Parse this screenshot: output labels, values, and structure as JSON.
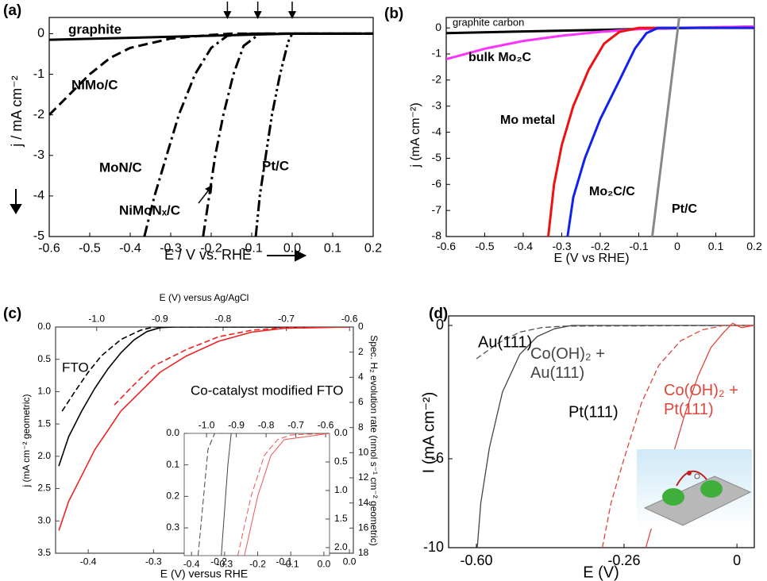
{
  "chart_data": [
    {
      "type": "line",
      "label": "(a)",
      "xlabel": "E / V vs. RHE",
      "ylabel": "j / mA cm⁻²",
      "xlim": [
        -0.6,
        0.2
      ],
      "xticks": [
        -0.6,
        -0.5,
        -0.4,
        -0.3,
        -0.2,
        -0.1,
        {
          "value": 0,
          "label": "0.0"
        },
        0.1,
        0.2
      ],
      "ylim": [
        -5,
        0.4
      ],
      "yticks": [
        0,
        -1,
        -2,
        -3,
        -4,
        -5
      ],
      "onset_arrows": [
        -0.16,
        -0.085,
        0
      ],
      "series": [
        {
          "name": "graphite",
          "color": "#000000",
          "style": "solid",
          "x": [
            -0.6,
            -0.4,
            -0.2,
            -0.05,
            0,
            0.2
          ],
          "values": [
            -0.15,
            -0.1,
            -0.05,
            -0.01,
            0,
            0
          ]
        },
        {
          "name": "NiMo/C",
          "color": "#000000",
          "style": "dashed",
          "x": [
            -0.6,
            -0.55,
            -0.5,
            -0.45,
            -0.4,
            -0.3,
            -0.2,
            -0.15,
            0.2
          ],
          "values": [
            -2.0,
            -1.5,
            -1.0,
            -0.6,
            -0.35,
            -0.12,
            -0.03,
            0,
            0
          ]
        },
        {
          "name": "MoN/C",
          "color": "#000000",
          "style": "dashdot",
          "x": [
            -0.365,
            -0.34,
            -0.31,
            -0.28,
            -0.24,
            -0.2,
            -0.16,
            -0.1,
            0.2
          ],
          "values": [
            -5,
            -4,
            -3,
            -2,
            -1,
            -0.35,
            -0.05,
            0,
            0
          ]
        },
        {
          "name": "NiMoNₓ/C",
          "color": "#000000",
          "style": "dashdot",
          "x": [
            -0.22,
            -0.205,
            -0.19,
            -0.17,
            -0.145,
            -0.12,
            -0.08,
            0.2
          ],
          "values": [
            -5,
            -4,
            -3,
            -2,
            -1,
            -0.3,
            0,
            0
          ]
        },
        {
          "name": "Pt/C",
          "color": "#000000",
          "style": "dashdotdot",
          "x": [
            -0.09,
            -0.08,
            -0.065,
            -0.05,
            -0.03,
            -0.01,
            0,
            0.2
          ],
          "values": [
            -5,
            -4,
            -3,
            -2,
            -1,
            -0.2,
            0,
            0
          ]
        }
      ]
    },
    {
      "type": "line",
      "label": "(b)",
      "xlabel": "E (V vs RHE)",
      "ylabel": "j (mA cm⁻²)",
      "xlim": [
        -0.6,
        0.2
      ],
      "xticks": [
        -0.6,
        -0.5,
        -0.4,
        -0.3,
        -0.2,
        -0.1,
        0,
        0.1,
        0.2
      ],
      "ylim": [
        -8,
        0.4
      ],
      "yticks": [
        0,
        -1,
        -2,
        -3,
        -4,
        -5,
        -6,
        -7,
        -8
      ],
      "series": [
        {
          "name": "graphite carbon",
          "color": "#000000",
          "style": "solid",
          "x": [
            -0.6,
            0.2
          ],
          "values": [
            -0.2,
            0.05
          ]
        },
        {
          "name": "bulk Mo₂C",
          "color": "#ff33ff",
          "style": "solid",
          "x": [
            -0.6,
            -0.5,
            -0.4,
            -0.3,
            -0.2,
            -0.1,
            0,
            0.2
          ],
          "values": [
            -1.2,
            -0.8,
            -0.5,
            -0.3,
            -0.15,
            -0.05,
            0,
            0.05
          ]
        },
        {
          "name": "Mo metal",
          "color": "#ee1111",
          "style": "solid",
          "x": [
            -0.335,
            -0.32,
            -0.3,
            -0.27,
            -0.23,
            -0.19,
            -0.15,
            -0.1,
            0.2
          ],
          "values": [
            -8,
            -6,
            -4.5,
            -3,
            -1.6,
            -0.6,
            -0.15,
            0,
            0
          ]
        },
        {
          "name": "Mo₂C/C",
          "color": "#1122ee",
          "style": "solid",
          "x": [
            -0.285,
            -0.27,
            -0.24,
            -0.2,
            -0.15,
            -0.11,
            -0.08,
            -0.05,
            0.2
          ],
          "values": [
            -8,
            -6.5,
            -5,
            -3.5,
            -2,
            -0.8,
            -0.2,
            0,
            0
          ]
        },
        {
          "name": "Pt/C",
          "color": "#888888",
          "style": "solid",
          "x": [
            -0.065,
            0.005
          ],
          "values": [
            -8,
            0.4
          ]
        }
      ]
    },
    {
      "type": "line",
      "label": "(c)",
      "xlabel": "E (V) versus RHE",
      "x2label": "E (V) versus Ag/AgCl",
      "ylabel": "j (mA cm⁻² geometric)",
      "y2label": "Spec. H₂ evolution rate (nmol s⁻¹ cm⁻² geometric)",
      "xlim": [
        -0.45,
        0.006
      ],
      "xticks": [
        -0.4,
        -0.3,
        -0.2,
        -0.1,
        {
          "value": 0,
          "label": "0.0"
        }
      ],
      "x2lim": [
        -1.065,
        -0.594
      ],
      "x2ticks": [
        {
          "value": -1,
          "label": "-1.0"
        },
        -0.9,
        -0.8,
        -0.7,
        -0.6
      ],
      "ylim": [
        3.5,
        0
      ],
      "yticks": [
        {
          "value": 0,
          "label": "0.0"
        },
        0.5,
        {
          "value": 1,
          "label": "1.0"
        },
        1.5,
        {
          "value": 2,
          "label": "2.0"
        },
        2.5,
        {
          "value": 3,
          "label": "3.0"
        },
        3.5
      ],
      "y2lim": [
        18,
        0
      ],
      "y2ticks": [
        0,
        2,
        4,
        6,
        8,
        10,
        12,
        14,
        16,
        18
      ],
      "series": [
        {
          "color": "#000000",
          "style": "dashed",
          "axis": "y2",
          "x": [
            -0.44,
            -0.42,
            -0.4,
            -0.38,
            -0.35,
            -0.32,
            -0.3,
            0
          ],
          "values": [
            6.7,
            5.1,
            3.6,
            2.3,
            1.0,
            0.26,
            0,
            0
          ]
        },
        {
          "name": "FTO",
          "color": "#000000",
          "style": "solid",
          "x": [
            -0.445,
            -0.43,
            -0.41,
            -0.39,
            -0.37,
            -0.35,
            -0.33,
            -0.31,
            -0.29,
            -0.27,
            0
          ],
          "values": [
            2.15,
            1.7,
            1.3,
            0.95,
            0.65,
            0.4,
            0.2,
            0.07,
            0.01,
            0,
            0
          ]
        },
        {
          "color": "#ee2222",
          "style": "dashed",
          "axis": "y2",
          "x": [
            -0.36,
            -0.33,
            -0.3,
            -0.25,
            -0.2,
            -0.15,
            -0.1,
            0
          ],
          "values": [
            6.2,
            4.6,
            3.1,
            1.8,
            0.77,
            0.26,
            0.05,
            0
          ]
        },
        {
          "name": "Co-catalyst modified FTO",
          "color": "#ee2222",
          "style": "solid",
          "x": [
            -0.445,
            -0.43,
            -0.41,
            -0.39,
            -0.37,
            -0.35,
            -0.32,
            -0.29,
            -0.25,
            -0.2,
            -0.15,
            -0.1,
            0
          ],
          "values": [
            3.15,
            2.7,
            2.3,
            1.9,
            1.6,
            1.3,
            1.0,
            0.7,
            0.45,
            0.22,
            0.08,
            0.02,
            0
          ]
        }
      ]
    },
    {
      "type": "line",
      "xlim": [
        -0.422,
        0.017
      ],
      "xticks": [
        -0.4,
        -0.3,
        -0.2,
        -0.1,
        {
          "value": 0,
          "label": "0.0"
        }
      ],
      "x2lim": [
        -1.075,
        -0.587
      ],
      "x2ticks": [
        {
          "value": -1,
          "label": "-1.0"
        },
        -0.9,
        -0.8,
        -0.7,
        -0.6
      ],
      "ylim": [
        0.388,
        0
      ],
      "yticks": [
        {
          "value": 0,
          "label": "0.0"
        },
        0.1,
        0.2,
        0.3
      ],
      "y2lim": [
        2.14,
        0
      ],
      "y2ticks": [
        {
          "value": 0,
          "label": "0.0"
        },
        0.5,
        {
          "value": 1,
          "label": "1.0"
        },
        1.5,
        {
          "value": 2,
          "label": "2.0"
        }
      ],
      "series": [
        {
          "color": "#444444",
          "style": "dashed",
          "x": [
            -0.38,
            -0.35,
            -0.33,
            0.017
          ],
          "values": [
            0.388,
            0.05,
            0,
            0
          ]
        },
        {
          "color": "#444444",
          "style": "solid",
          "x": [
            -0.31,
            -0.29,
            -0.28,
            0.017
          ],
          "values": [
            0.388,
            0.1,
            0,
            0
          ]
        },
        {
          "color": "#ee5555",
          "style": "dashed",
          "x": [
            -0.26,
            -0.22,
            -0.18,
            -0.14,
            -0.1,
            0.017
          ],
          "values": [
            0.388,
            0.2,
            0.07,
            0.02,
            0.005,
            0
          ]
        },
        {
          "color": "#ee5555",
          "style": "solid",
          "x": [
            -0.24,
            -0.2,
            -0.16,
            -0.12,
            0.017
          ],
          "values": [
            0.388,
            0.2,
            0.07,
            0.02,
            0
          ]
        }
      ]
    },
    {
      "type": "line",
      "label": "(d)",
      "xlabel": "E (V)",
      "ylabel": "I (mA cm⁻²)",
      "xlim": [
        -0.664,
        0.04
      ],
      "xticks": [
        {
          "value": -0.6,
          "label": "-0.60"
        },
        -0.26,
        0
      ],
      "ylim": [
        -10,
        0.43
      ],
      "yticks": [
        0,
        -6,
        -10
      ],
      "series": [
        {
          "name": "Au(111)",
          "color": "#555555",
          "style": "dashed",
          "x": [
            -0.6,
            -0.55,
            -0.5,
            -0.45,
            -0.4,
            0.04
          ],
          "values": [
            -1.5,
            -0.8,
            -0.3,
            -0.1,
            -0.03,
            0
          ]
        },
        {
          "name": "Co(OH)₂ + Au(111)",
          "color": "#444444",
          "style": "solid",
          "x": [
            -0.598,
            -0.59,
            -0.57,
            -0.54,
            -0.5,
            -0.46,
            -0.42,
            -0.38,
            0.04
          ],
          "values": [
            -10,
            -8,
            -5.5,
            -3,
            -1.3,
            -0.5,
            -0.15,
            0,
            0
          ]
        },
        {
          "name": "Pt(111)",
          "color": "#e0453a",
          "style": "dashed",
          "x": [
            -0.31,
            -0.29,
            -0.26,
            -0.22,
            -0.18,
            -0.13,
            -0.08,
            -0.03,
            0.04
          ],
          "values": [
            -10,
            -8,
            -6,
            -3.5,
            -1.8,
            -0.7,
            -0.2,
            0,
            0
          ]
        },
        {
          "name": "Co(OH)₂ + Pt(111)",
          "color": "#e0453a",
          "style": "solid",
          "x": [
            -0.21,
            -0.18,
            -0.15,
            -0.12,
            -0.09,
            -0.06,
            -0.03,
            -0.01,
            0.01,
            0.04
          ],
          "values": [
            -10,
            -8,
            -6,
            -4,
            -2.3,
            -1,
            -0.3,
            0.1,
            -0.1,
            0
          ]
        }
      ]
    }
  ]
}
